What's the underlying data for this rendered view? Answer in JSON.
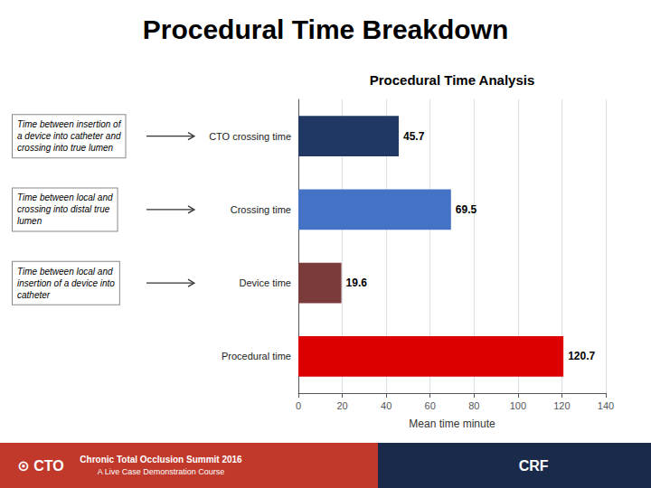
{
  "chart_data": {
    "type": "bar",
    "orientation": "horizontal",
    "title": "Procedural Time Breakdown",
    "subtitle": "Procedural Time Analysis",
    "xlabel": "Mean time minute",
    "categories": [
      "Procedural time",
      "Device time",
      "Crossing time",
      "CTO crossing time"
    ],
    "values": [
      120.7,
      19.6,
      69.5,
      45.7
    ],
    "colors": [
      "#dd0000",
      "#7B3B3B",
      "#4472C4",
      "#1F3864"
    ],
    "xlim": [
      0,
      140
    ],
    "xticks": [
      0,
      20,
      40,
      60,
      80,
      100,
      120,
      140
    ],
    "grid": true,
    "data_labels": true,
    "annotations": [
      {
        "text": "Time between insertion of\na device into catheter and\ncrossing into true lumen",
        "category": "CTO crossing time"
      },
      {
        "text": "Time between local and\ncrossing into distal true\nlumen",
        "category": "Crossing time"
      },
      {
        "text": "Time between local and\ninsertion of a device into\ncatheter",
        "category": "Device time"
      }
    ],
    "footer": [
      {
        "color": "#c0392b",
        "texts": [
          "⊙ CTO",
          "Chronic Total Occlusion Summit 2016",
          "A Live Case Demonstration Course"
        ]
      },
      {
        "color": "#1a2a4a",
        "texts": [
          "CRF"
        ]
      }
    ]
  }
}
